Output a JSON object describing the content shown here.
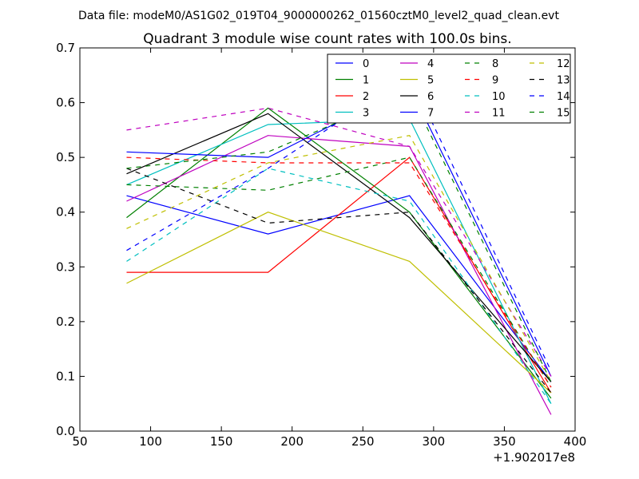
{
  "header": {
    "suptitle": "Data file: modeM0/AS1G02_019T04_9000000262_01560cztM0_level2_quad_clean.evt"
  },
  "chart_data": {
    "type": "line",
    "title": "Quadrant 3 module wise count rates with 100.0s bins.",
    "xlabel": "",
    "ylabel": "",
    "x_offset_label": "+1.902017e8",
    "x": [
      83,
      183,
      283,
      383
    ],
    "xlim": [
      50,
      400
    ],
    "ylim": [
      0.0,
      0.7
    ],
    "xticks": [
      50,
      100,
      150,
      200,
      250,
      300,
      350,
      400
    ],
    "yticks": [
      0.0,
      0.1,
      0.2,
      0.3,
      0.4,
      0.5,
      0.6,
      0.7
    ],
    "xtick_labels": [
      "50",
      "100",
      "150",
      "200",
      "250",
      "300",
      "350",
      "400"
    ],
    "ytick_labels": [
      "0.0",
      "0.1",
      "0.2",
      "0.3",
      "0.4",
      "0.5",
      "0.6",
      "0.7"
    ],
    "grid": false,
    "legend_placement": "top-right",
    "legend_columns": 4,
    "series": [
      {
        "name": "0",
        "color": "#0000ff",
        "style": "solid",
        "values": [
          0.43,
          0.36,
          0.43,
          0.09
        ]
      },
      {
        "name": "1",
        "color": "#008000",
        "style": "solid",
        "values": [
          0.39,
          0.59,
          0.4,
          0.06
        ]
      },
      {
        "name": "2",
        "color": "#ff0000",
        "style": "solid",
        "values": [
          0.29,
          0.29,
          0.5,
          0.07
        ]
      },
      {
        "name": "3",
        "color": "#00bfbf",
        "style": "solid",
        "values": [
          0.45,
          0.56,
          0.57,
          0.05
        ]
      },
      {
        "name": "4",
        "color": "#bf00bf",
        "style": "solid",
        "values": [
          0.42,
          0.54,
          0.52,
          0.03
        ]
      },
      {
        "name": "5",
        "color": "#bfbf00",
        "style": "solid",
        "values": [
          0.27,
          0.4,
          0.31,
          0.07
        ]
      },
      {
        "name": "6",
        "color": "#000000",
        "style": "solid",
        "values": [
          0.47,
          0.58,
          0.39,
          0.09
        ]
      },
      {
        "name": "7",
        "color": "#0000ff",
        "style": "solid",
        "values": [
          0.51,
          0.5,
          0.63,
          0.1
        ]
      },
      {
        "name": "8",
        "color": "#008000",
        "style": "dashed",
        "values": [
          0.45,
          0.44,
          0.5,
          0.08
        ]
      },
      {
        "name": "9",
        "color": "#ff0000",
        "style": "dashed",
        "values": [
          0.5,
          0.49,
          0.49,
          0.08
        ]
      },
      {
        "name": "10",
        "color": "#00bfbf",
        "style": "dashed",
        "values": [
          0.31,
          0.48,
          0.42,
          0.05
        ]
      },
      {
        "name": "11",
        "color": "#bf00bf",
        "style": "dashed",
        "values": [
          0.55,
          0.59,
          0.52,
          0.1
        ]
      },
      {
        "name": "12",
        "color": "#bfbf00",
        "style": "dashed",
        "values": [
          0.37,
          0.49,
          0.54,
          0.09
        ]
      },
      {
        "name": "13",
        "color": "#000000",
        "style": "dashed",
        "values": [
          0.48,
          0.38,
          0.4,
          0.07
        ]
      },
      {
        "name": "14",
        "color": "#0000ff",
        "style": "dashed",
        "values": [
          0.33,
          0.48,
          0.65,
          0.11
        ]
      },
      {
        "name": "15",
        "color": "#008000",
        "style": "dashed",
        "values": [
          0.48,
          0.51,
          0.62,
          0.09
        ]
      }
    ]
  }
}
